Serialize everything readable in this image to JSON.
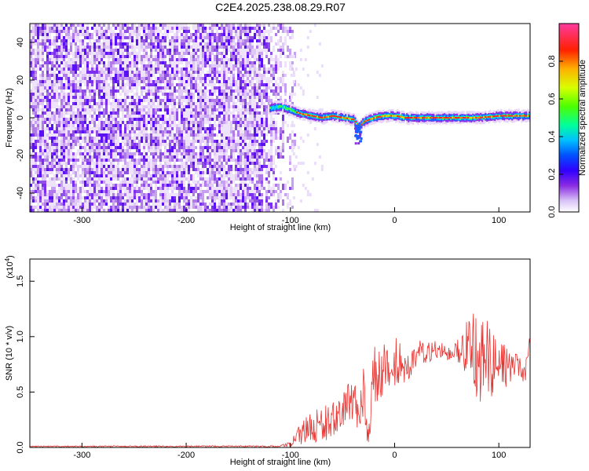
{
  "title": "C2E4.2025.238.08.29.R07",
  "chart_data": [
    {
      "type": "heatmap",
      "name": "spectrogram",
      "xlabel": "Height of straight line (km)",
      "ylabel": "Frequency (Hz)",
      "xlim": [
        -350,
        130
      ],
      "ylim": [
        -50,
        50
      ],
      "x_ticks": [
        -300,
        -200,
        -100,
        0,
        100
      ],
      "y_ticks": [
        -40,
        -20,
        0,
        20,
        40
      ],
      "x_tick_labels": [
        "-300",
        "-200",
        "-100",
        "0",
        "100"
      ],
      "y_tick_labels": [
        "-40",
        "-20",
        "0",
        "20",
        "40"
      ],
      "noise_region_x": [
        -350,
        -100
      ],
      "signal_trace": {
        "x": [
          -120,
          -110,
          -100,
          -90,
          -80,
          -70,
          -60,
          -50,
          -40,
          -35,
          -30,
          -20,
          -10,
          0,
          10,
          20,
          40,
          60,
          80,
          100,
          120,
          130
        ],
        "freq": [
          5,
          6,
          4,
          2,
          1,
          0,
          1,
          0,
          -1,
          -5,
          -2,
          0,
          1,
          1,
          0,
          0,
          0,
          0,
          0,
          1,
          1,
          1
        ]
      },
      "colorbar": {
        "label": "Normalized spectral amplitude",
        "range": [
          0,
          1
        ],
        "ticks": [
          0.0,
          0.2,
          0.4,
          0.6,
          0.8
        ],
        "tick_labels": [
          "0.0",
          "0.2",
          "0.4",
          "0.6",
          "0.8"
        ],
        "colors": [
          "#ffffff",
          "#c9a8f5",
          "#7a1fff",
          "#0000ff",
          "#00bfff",
          "#00ff80",
          "#9bff00",
          "#ffff00",
          "#ff8000",
          "#ff0000",
          "#ff0080"
        ]
      }
    },
    {
      "type": "line",
      "name": "snr",
      "xlabel": "Height of straight line (km)",
      "ylabel": "SNR (10 * v/v)",
      "y_multiplier": "(x10",
      "y_multiplier_exp": "4",
      "y_multiplier_close": ")",
      "xlim": [
        -350,
        130
      ],
      "ylim": [
        0,
        1.7
      ],
      "x_ticks": [
        -300,
        -200,
        -100,
        0,
        100
      ],
      "y_ticks": [
        0.0,
        0.5,
        1.0,
        1.5
      ],
      "x_tick_labels": [
        "-300",
        "-200",
        "-100",
        "0",
        "100"
      ],
      "y_tick_labels": [
        "0.0",
        "0.5",
        "1.0",
        "1.5"
      ],
      "color": "#e8322f",
      "envelope": {
        "x": [
          -350,
          -110,
          -100,
          -90,
          -80,
          -70,
          -60,
          -50,
          -40,
          -30,
          -25,
          -20,
          -10,
          0,
          10,
          20,
          30,
          40,
          50,
          60,
          70,
          80,
          85,
          90,
          100,
          110,
          120,
          125,
          130
        ],
        "mean": [
          0.01,
          0.01,
          0.03,
          0.12,
          0.18,
          0.22,
          0.25,
          0.32,
          0.4,
          0.48,
          0.1,
          0.62,
          0.7,
          0.78,
          0.75,
          0.82,
          0.86,
          0.88,
          0.87,
          0.88,
          0.9,
          0.85,
          0.8,
          0.78,
          0.75,
          0.72,
          0.7,
          0.62,
          1.0
        ],
        "jitter": [
          0.005,
          0.008,
          0.03,
          0.1,
          0.15,
          0.18,
          0.18,
          0.22,
          0.25,
          0.28,
          0.1,
          0.3,
          0.25,
          0.22,
          0.18,
          0.15,
          0.1,
          0.08,
          0.08,
          0.1,
          0.25,
          0.45,
          0.45,
          0.4,
          0.22,
          0.18,
          0.12,
          0.1,
          0.05
        ]
      }
    }
  ]
}
